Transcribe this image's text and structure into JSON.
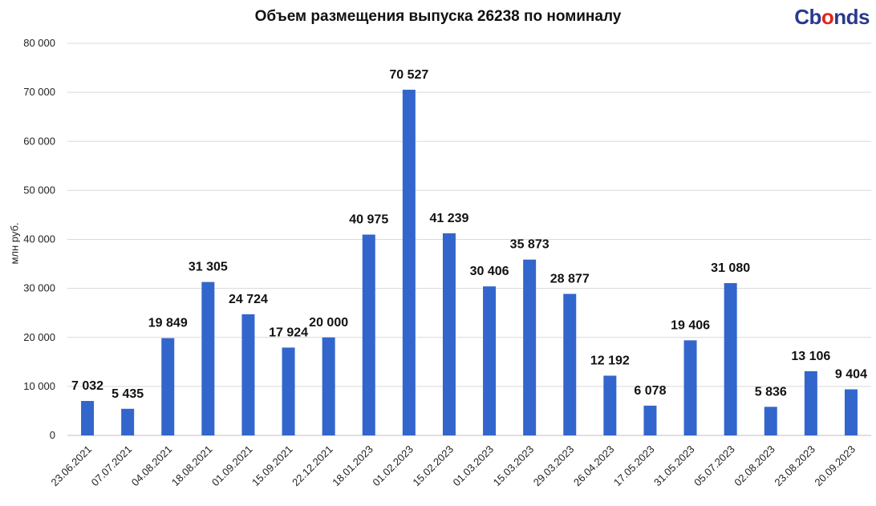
{
  "logo": {
    "text_main": "Cbonds",
    "accent_color": "#e1251b",
    "brand_color": "#2a3a8c"
  },
  "chart_data": {
    "type": "bar",
    "title": "Объем размещения выпуска 26238 по номиналу",
    "xlabel": "",
    "ylabel": "млн руб.",
    "ylim": [
      0,
      80000
    ],
    "yticks": [
      0,
      10000,
      20000,
      30000,
      40000,
      50000,
      60000,
      70000,
      80000
    ],
    "ytick_labels": [
      "0",
      "10 000",
      "20 000",
      "30 000",
      "40 000",
      "50 000",
      "60 000",
      "70 000",
      "80 000"
    ],
    "grid": true,
    "bar_color": "#3366cc",
    "categories": [
      "23.06.2021",
      "07.07.2021",
      "04.08.2021",
      "18.08.2021",
      "01.09.2021",
      "15.09.2021",
      "22.12.2021",
      "18.01.2023",
      "01.02.2023",
      "15.02.2023",
      "01.03.2023",
      "15.03.2023",
      "29.03.2023",
      "26.04.2023",
      "17.05.2023",
      "31.05.2023",
      "05.07.2023",
      "02.08.2023",
      "23.08.2023",
      "20.09.2023"
    ],
    "values": [
      7032,
      5435,
      19849,
      31305,
      24724,
      17924,
      20000,
      40975,
      70527,
      41239,
      30406,
      35873,
      28877,
      12192,
      6078,
      19406,
      31080,
      5836,
      13106,
      9404
    ],
    "value_labels": [
      "7 032",
      "5 435",
      "19 849",
      "31 305",
      "24 724",
      "17 924",
      "20 000",
      "40 975",
      "70 527",
      "41 239",
      "30 406",
      "35 873",
      "28 877",
      "12 192",
      "6 078",
      "19 406",
      "31 080",
      "5 836",
      "13 106",
      "9 404"
    ]
  }
}
